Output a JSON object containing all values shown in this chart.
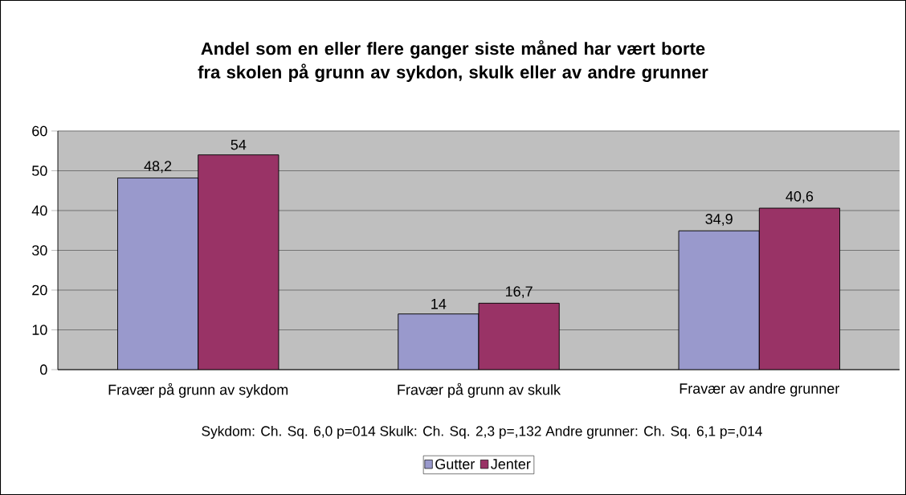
{
  "chart_data": {
    "type": "bar",
    "title": "Andel som en eller flere ganger siste måned har vært borte fra skolen på grunn av sykdon, skulk eller av andre grunner",
    "categories": [
      "Fravær på grunn av sykdom",
      "Fravær på grunn av skulk",
      "Fravær av andre grunner"
    ],
    "series": [
      {
        "name": "Gutter",
        "color": "#9999cc",
        "values": [
          48.2,
          14,
          34.9
        ],
        "value_labels": [
          "48,2",
          "14",
          "34,9"
        ]
      },
      {
        "name": "Jenter",
        "color": "#993366",
        "values": [
          54,
          16.7,
          40.6
        ],
        "value_labels": [
          "54",
          "16,7",
          "40,6"
        ]
      }
    ],
    "ylim": [
      0,
      60
    ],
    "yticks": [
      0,
      10,
      20,
      30,
      40,
      50,
      60
    ],
    "grid": "y",
    "legend": "bottom",
    "annotations": [
      "Sykdom: Ch. Sq. 6,0 p=014  Skulk: Ch. Sq. 2,3 p=,132  Andre grunner: Ch. Sq. 6,1 p=,014"
    ]
  }
}
